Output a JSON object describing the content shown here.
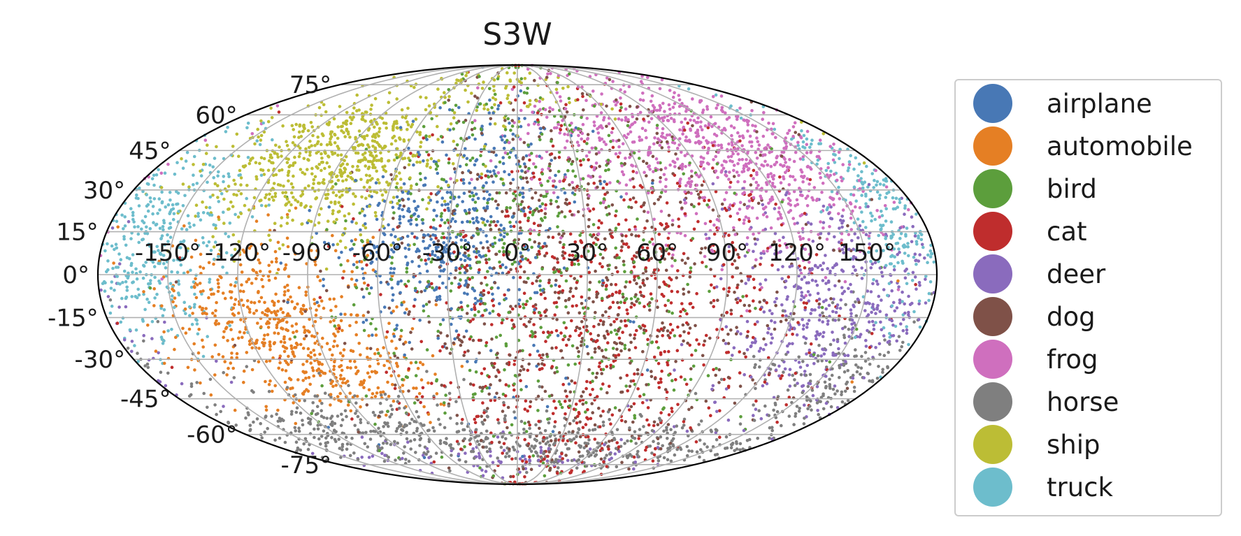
{
  "chart_data": {
    "type": "scatter",
    "projection": "mollweide",
    "title": "S3W",
    "grid": true,
    "legend_position": "right",
    "longitude_ticks": [
      "-150°",
      "-120°",
      "-90°",
      "-60°",
      "-30°",
      "0°",
      "30°",
      "60°",
      "90°",
      "120°",
      "150°"
    ],
    "latitude_ticks": [
      "75°",
      "60°",
      "45°",
      "30°",
      "15°",
      "0°",
      "-15°",
      "-30°",
      "-45°",
      "-60°",
      "-75°"
    ],
    "series": [
      {
        "name": "airplane",
        "color": "#4878b5",
        "clusters": [
          {
            "lon": -35,
            "lat": 10,
            "spread_lon": 22,
            "spread_lat": 14,
            "count": 420
          },
          {
            "lon": -5,
            "lat": 45,
            "spread_lon": 20,
            "spread_lat": 10,
            "count": 90
          },
          {
            "lon": -10,
            "lat": -10,
            "spread_lon": 40,
            "spread_lat": 30,
            "count": 70
          }
        ]
      },
      {
        "name": "automobile",
        "color": "#e57f24",
        "clusters": [
          {
            "lon": -110,
            "lat": -15,
            "spread_lon": 25,
            "spread_lat": 15,
            "count": 500
          },
          {
            "lon": -75,
            "lat": -35,
            "spread_lon": 18,
            "spread_lat": 8,
            "count": 150
          }
        ]
      },
      {
        "name": "bird",
        "color": "#5c9e3c",
        "clusters": [
          {
            "lon": 0,
            "lat": 25,
            "spread_lon": 40,
            "spread_lat": 30,
            "count": 380
          },
          {
            "lon": 10,
            "lat": -20,
            "spread_lon": 60,
            "spread_lat": 30,
            "count": 240
          }
        ]
      },
      {
        "name": "cat",
        "color": "#bf2d2d",
        "clusters": [
          {
            "lon": 40,
            "lat": -10,
            "spread_lon": 50,
            "spread_lat": 35,
            "count": 850
          }
        ]
      },
      {
        "name": "deer",
        "color": "#8a6bbd",
        "clusters": [
          {
            "lon": 140,
            "lat": -10,
            "spread_lon": 25,
            "spread_lat": 20,
            "count": 520
          },
          {
            "lon": 0,
            "lat": -70,
            "spread_lon": 80,
            "spread_lat": 5,
            "count": 90
          }
        ]
      },
      {
        "name": "dog",
        "color": "#7f5148",
        "clusters": [
          {
            "lon": 30,
            "lat": -5,
            "spread_lon": 50,
            "spread_lat": 35,
            "count": 800
          }
        ]
      },
      {
        "name": "frog",
        "color": "#cf6fbe",
        "clusters": [
          {
            "lon": 120,
            "lat": 40,
            "spread_lon": 28,
            "spread_lat": 18,
            "count": 650
          },
          {
            "lon": 50,
            "lat": 45,
            "spread_lon": 30,
            "spread_lat": 15,
            "count": 250
          }
        ]
      },
      {
        "name": "horse",
        "color": "#7f7f7f",
        "clusters": [
          {
            "lon": -100,
            "lat": -55,
            "spread_lon": 50,
            "spread_lat": 8,
            "count": 300
          },
          {
            "lon": 60,
            "lat": -65,
            "spread_lon": 80,
            "spread_lat": 6,
            "count": 350
          },
          {
            "lon": 155,
            "lat": -35,
            "spread_lon": 20,
            "spread_lat": 12,
            "count": 200
          }
        ]
      },
      {
        "name": "ship",
        "color": "#bcbd35",
        "clusters": [
          {
            "lon": -95,
            "lat": 40,
            "spread_lon": 30,
            "spread_lat": 14,
            "count": 700
          },
          {
            "lon": -20,
            "lat": 70,
            "spread_lon": 40,
            "spread_lat": 8,
            "count": 80
          }
        ]
      },
      {
        "name": "truck",
        "color": "#6dbdcc",
        "clusters": [
          {
            "lon": -160,
            "lat": 10,
            "spread_lon": 18,
            "spread_lat": 18,
            "count": 400
          },
          {
            "lon": 165,
            "lat": 25,
            "spread_lon": 12,
            "spread_lat": 18,
            "count": 200
          }
        ]
      }
    ]
  }
}
